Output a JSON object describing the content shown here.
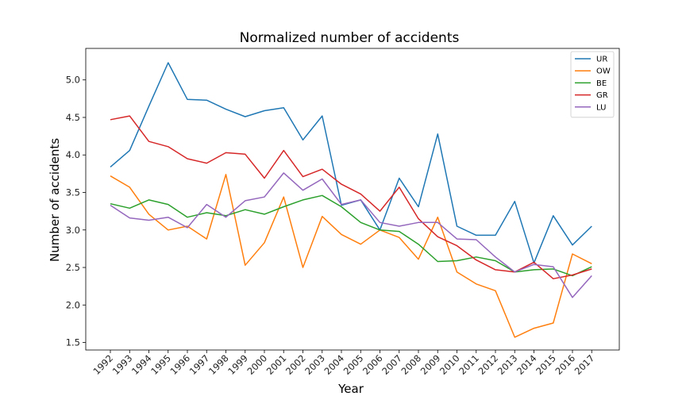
{
  "chart_data": {
    "type": "line",
    "title": "Normalized number of accidents",
    "xlabel": "Year",
    "ylabel": "Number of accidents",
    "x": [
      "1992",
      "1993",
      "1994",
      "1995",
      "1996",
      "1997",
      "1998",
      "1999",
      "2000",
      "2001",
      "2002",
      "2003",
      "2004",
      "2005",
      "2006",
      "2007",
      "2008",
      "2009",
      "2010",
      "2011",
      "2012",
      "2013",
      "2014",
      "2015",
      "2016",
      "2017"
    ],
    "ylim": [
      1.4,
      5.42
    ],
    "yticks": [
      "1.5",
      "2.0",
      "2.5",
      "3.0",
      "3.5",
      "4.0",
      "4.5",
      "5.0"
    ],
    "grid": false,
    "legend_position": "top-right",
    "series": [
      {
        "name": "UR",
        "color": "#1f77b4",
        "values": [
          3.84,
          4.06,
          4.65,
          5.23,
          4.74,
          4.73,
          4.61,
          4.51,
          4.59,
          4.63,
          4.2,
          4.52,
          3.33,
          3.4,
          3.0,
          3.69,
          3.31,
          4.28,
          3.05,
          2.93,
          2.93,
          3.38,
          2.56,
          3.19,
          2.8,
          3.05
        ]
      },
      {
        "name": "OW",
        "color": "#ff7f0e",
        "values": [
          3.72,
          3.57,
          3.21,
          3.0,
          3.05,
          2.88,
          3.74,
          2.53,
          2.83,
          3.44,
          2.5,
          3.18,
          2.94,
          2.81,
          3.0,
          2.9,
          2.61,
          3.17,
          2.44,
          2.28,
          2.19,
          1.57,
          1.69,
          1.76,
          2.68,
          2.55
        ]
      },
      {
        "name": "BE",
        "color": "#2ca02c",
        "values": [
          3.35,
          3.29,
          3.4,
          3.34,
          3.17,
          3.23,
          3.19,
          3.27,
          3.21,
          3.31,
          3.4,
          3.46,
          3.31,
          3.1,
          3.0,
          2.98,
          2.81,
          2.58,
          2.59,
          2.64,
          2.59,
          2.44,
          2.47,
          2.48,
          2.39,
          2.51
        ]
      },
      {
        "name": "GR",
        "color": "#d62728",
        "values": [
          4.47,
          4.52,
          4.18,
          4.11,
          3.95,
          3.89,
          4.03,
          4.01,
          3.69,
          4.06,
          3.71,
          3.81,
          3.61,
          3.48,
          3.25,
          3.57,
          3.15,
          2.91,
          2.79,
          2.6,
          2.47,
          2.44,
          2.57,
          2.35,
          2.4,
          2.48
        ]
      },
      {
        "name": "LU",
        "color": "#9467bd",
        "values": [
          3.33,
          3.16,
          3.13,
          3.17,
          3.03,
          3.34,
          3.17,
          3.39,
          3.44,
          3.76,
          3.53,
          3.68,
          3.34,
          3.4,
          3.1,
          3.05,
          3.1,
          3.1,
          2.88,
          2.87,
          2.64,
          2.44,
          2.54,
          2.51,
          2.1,
          2.39
        ]
      }
    ]
  }
}
